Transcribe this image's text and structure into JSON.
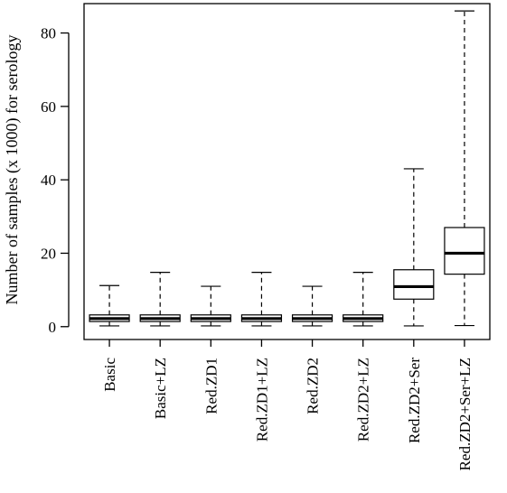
{
  "chart_data": {
    "type": "boxplot",
    "title": "",
    "xlabel": "",
    "ylabel": "Number of samples (x 1000) for serology",
    "ylim": [
      -3.5,
      88
    ],
    "yticks": [
      0,
      20,
      40,
      60,
      80
    ],
    "grid": false,
    "legend": "none",
    "categories": [
      "Basic",
      "Basic+LZ",
      "Red.ZD1",
      "Red.ZD1+LZ",
      "Red.ZD2",
      "Red.ZD2+LZ",
      "Red.ZD2+Ser",
      "Red.ZD2+Ser+LZ"
    ],
    "boxes": [
      {
        "min": 0.2,
        "q1": 1.4,
        "median": 2.2,
        "q3": 3.2,
        "max": 11.2
      },
      {
        "min": 0.2,
        "q1": 1.4,
        "median": 2.2,
        "q3": 3.2,
        "max": 14.8
      },
      {
        "min": 0.2,
        "q1": 1.4,
        "median": 2.2,
        "q3": 3.2,
        "max": 11.0
      },
      {
        "min": 0.2,
        "q1": 1.4,
        "median": 2.2,
        "q3": 3.2,
        "max": 14.8
      },
      {
        "min": 0.2,
        "q1": 1.4,
        "median": 2.2,
        "q3": 3.2,
        "max": 11.0
      },
      {
        "min": 0.2,
        "q1": 1.4,
        "median": 2.2,
        "q3": 3.2,
        "max": 14.8
      },
      {
        "min": 0.2,
        "q1": 7.5,
        "median": 10.9,
        "q3": 15.5,
        "max": 43.0
      },
      {
        "min": 0.3,
        "q1": 14.3,
        "median": 20.0,
        "q3": 27.0,
        "max": 86.0
      }
    ]
  }
}
